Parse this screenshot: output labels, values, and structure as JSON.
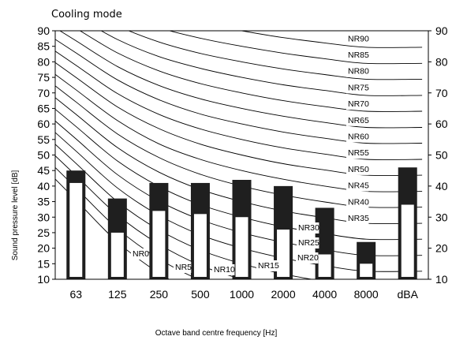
{
  "chart_data": {
    "type": "bar",
    "title": "Cooling mode",
    "xlabel": "Octave band centre frequency [Hz]",
    "ylabel": "Sound pressure level [dB]",
    "ylim": [
      10,
      90
    ],
    "yticks": [
      10,
      15,
      20,
      25,
      30,
      35,
      40,
      45,
      50,
      55,
      60,
      65,
      70,
      75,
      80,
      85,
      90
    ],
    "yticks_right": [
      10,
      20,
      30,
      40,
      50,
      60,
      70,
      80,
      90
    ],
    "categories": [
      "63",
      "125",
      "250",
      "500",
      "1000",
      "2000",
      "4000",
      "8000",
      "dBA"
    ],
    "series": [
      {
        "values": [
          45,
          36,
          41,
          41,
          42,
          40,
          33,
          22,
          46
        ]
      },
      {
        "values": [
          41,
          25,
          32,
          31,
          30,
          26,
          18,
          15,
          34
        ]
      }
    ],
    "colors": {
      "outer": "#1f1f1f",
      "inner": "#ffffff",
      "curve": "#000000"
    },
    "nr_curves": [
      {
        "label": "NR0",
        "values": [
          35.5,
          22.0,
          12.0,
          4.8,
          0,
          -3.5,
          -6.1,
          -8.0
        ]
      },
      {
        "label": "NR5",
        "values": [
          39.4,
          26.3,
          16.6,
          9.7,
          5,
          1.6,
          -1.0,
          -2.8
        ]
      },
      {
        "label": "NR10",
        "values": [
          43.4,
          30.7,
          21.3,
          14.5,
          10,
          6.6,
          4.2,
          2.3
        ]
      },
      {
        "label": "NR15",
        "values": [
          47.3,
          35.0,
          25.9,
          19.4,
          15,
          11.7,
          9.3,
          7.4
        ]
      },
      {
        "label": "NR20",
        "values": [
          51.3,
          39.4,
          30.6,
          24.3,
          20,
          16.8,
          14.4,
          12.6
        ]
      },
      {
        "label": "NR25",
        "values": [
          55.2,
          43.7,
          35.2,
          29.2,
          25,
          21.9,
          19.5,
          17.7
        ]
      },
      {
        "label": "NR30",
        "values": [
          59.2,
          48.1,
          39.9,
          34.0,
          30,
          26.9,
          24.7,
          22.9
        ]
      },
      {
        "label": "NR35",
        "values": [
          63.1,
          52.4,
          44.5,
          38.9,
          35,
          32.0,
          29.8,
          28.0
        ]
      },
      {
        "label": "NR40",
        "values": [
          67.1,
          56.8,
          49.2,
          43.8,
          40,
          37.1,
          34.9,
          33.2
        ]
      },
      {
        "label": "NR45",
        "values": [
          71.0,
          61.1,
          53.6,
          48.6,
          45,
          42.2,
          40.0,
          38.3
        ]
      },
      {
        "label": "NR50",
        "values": [
          75.0,
          65.5,
          58.5,
          53.5,
          50,
          47.2,
          45.2,
          43.5
        ]
      },
      {
        "label": "NR55",
        "values": [
          78.9,
          69.8,
          63.1,
          58.4,
          55,
          52.3,
          50.3,
          48.6
        ]
      },
      {
        "label": "NR60",
        "values": [
          82.9,
          74.2,
          67.8,
          63.2,
          60,
          57.4,
          55.4,
          53.8
        ]
      },
      {
        "label": "NR65",
        "values": [
          86.8,
          78.5,
          72.4,
          68.1,
          65,
          62.5,
          60.5,
          58.9
        ]
      },
      {
        "label": "NR70",
        "values": [
          90.8,
          82.9,
          77.1,
          73.0,
          70,
          67.5,
          65.6,
          64.1
        ]
      },
      {
        "label": "NR75",
        "values": [
          94.7,
          87.2,
          81.7,
          77.9,
          75,
          72.6,
          70.8,
          69.2
        ]
      },
      {
        "label": "NR80",
        "values": [
          98.7,
          91.6,
          86.4,
          82.7,
          80,
          77.7,
          75.9,
          74.4
        ]
      },
      {
        "label": "NR85",
        "values": [
          102.6,
          95.9,
          91.0,
          87.6,
          85,
          82.8,
          81.0,
          79.5
        ]
      },
      {
        "label": "NR90",
        "values": [
          106.6,
          100.3,
          95.7,
          92.5,
          90,
          87.8,
          86.1,
          84.7
        ]
      }
    ]
  }
}
